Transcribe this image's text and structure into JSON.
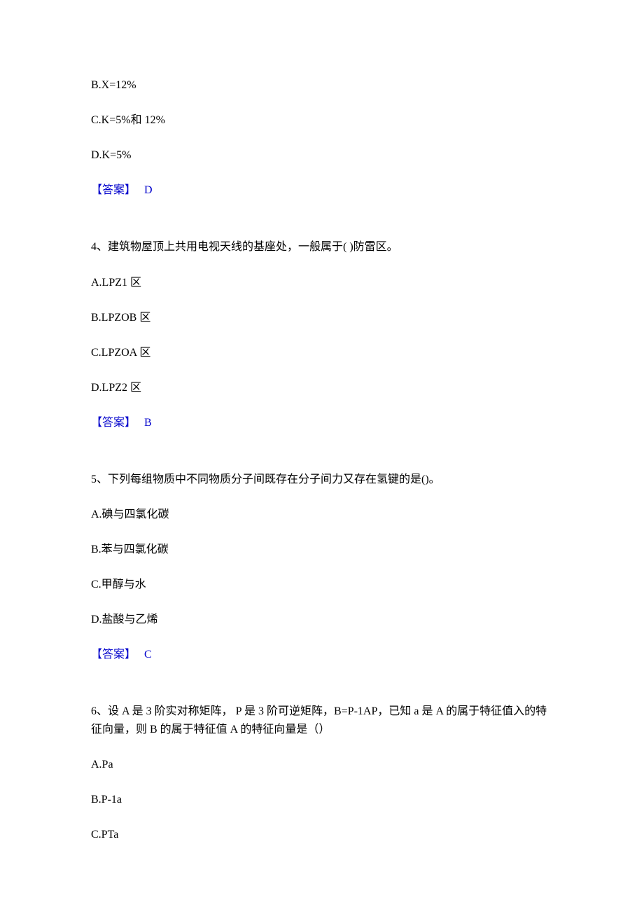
{
  "q3_partial": {
    "options": {
      "B": "B.X=12%",
      "C": "C.K=5%和 12%",
      "D": "D.K=5%"
    },
    "answer_label": "【答案】",
    "answer_value": "D"
  },
  "q4": {
    "text": "4、建筑物屋顶上共用电视天线的基座处，一般属于( )防雷区。",
    "options": {
      "A": "A.LPZ1 区",
      "B": "B.LPZOB 区",
      "C": "C.LPZOA 区",
      "D": "D.LPZ2 区"
    },
    "answer_label": "【答案】",
    "answer_value": "B"
  },
  "q5": {
    "text": "5、下列每组物质中不同物质分子间既存在分子间力又存在氢键的是()。",
    "options": {
      "A": "A.碘与四氯化碳",
      "B": "B.苯与四氯化碳",
      "C": "C.甲醇与水",
      "D": "D.盐酸与乙烯"
    },
    "answer_label": "【答案】",
    "answer_value": "C"
  },
  "q6": {
    "text": "6、设 A 是 3 阶实对称矩阵， P 是 3 阶可逆矩阵，B=P-1AP，已知 a 是 A 的属于特征值入的特征向量，则 B 的属于特征值 A 的特征向量是（）",
    "options": {
      "A": "A.Pa",
      "B": "B.P-1a",
      "C": "C.PTa"
    }
  }
}
